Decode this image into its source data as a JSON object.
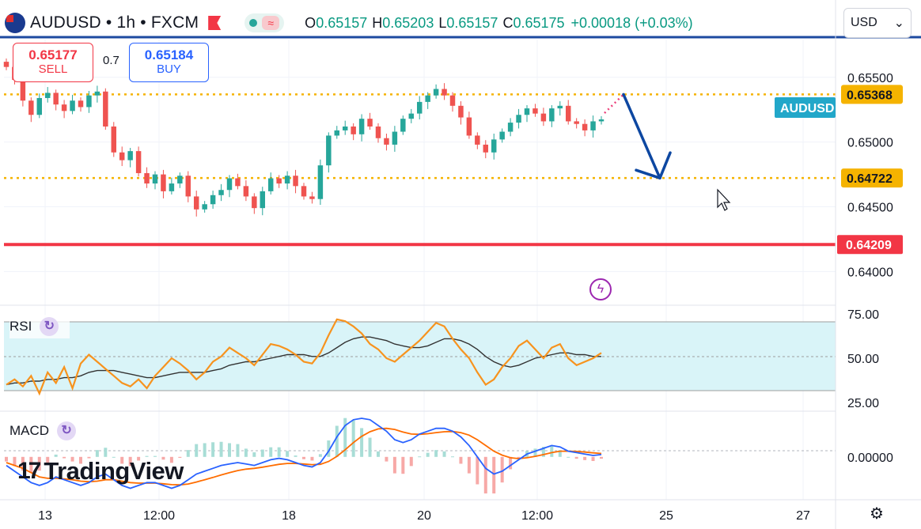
{
  "header": {
    "symbol": "AUDUSD • 1h • FXCM",
    "open_label": "O",
    "open": "0.65157",
    "high_label": "H",
    "high": "0.65203",
    "low_label": "L",
    "low": "0.65157",
    "close_label": "C",
    "close": "0.65175",
    "change": "+0.00018 (+0.03%)"
  },
  "trade": {
    "sell_price": "0.65177",
    "sell_label": "SELL",
    "spread": "0.7",
    "buy_price": "0.65184",
    "buy_label": "BUY"
  },
  "currency_selector": {
    "value": "USD"
  },
  "symbol_tag": "AUDUSD",
  "indicators": {
    "rsi_label": "RSI",
    "macd_label": "MACD"
  },
  "branding": {
    "logo_text": "TradingView"
  },
  "colors": {
    "up": "#26a69a",
    "down": "#ef5350",
    "level": "#f5b300",
    "support": "#f23645",
    "arrow": "#0d47a1",
    "rsi": "#f7931e",
    "rsi_ma": "#333333",
    "macd": "#2962ff",
    "signal": "#ff6d00",
    "symbol_tag": "#22a7c9"
  },
  "chart_data": [
    {
      "type": "candlestick",
      "title": "AUDUSD • 1h • FXCM",
      "y_axis_ticks": [
        "0.65500",
        "0.65000",
        "0.64500",
        "0.64000"
      ],
      "x_axis_ticks": [
        "13",
        "12:00",
        "18",
        "20",
        "12:00",
        "25",
        "27"
      ],
      "ylim": [
        0.6374,
        0.6581
      ],
      "horizontal_levels": [
        {
          "value": 0.65368,
          "label": "0.65368",
          "style": "dotted",
          "color": "#f5b300"
        },
        {
          "value": 0.64722,
          "label": "0.64722",
          "style": "dotted",
          "color": "#f5b300"
        },
        {
          "value": 0.64209,
          "label": "0.64209",
          "style": "solid",
          "color": "#f23645"
        }
      ],
      "close_path": [
        0.6558,
        0.6548,
        0.6532,
        0.6521,
        0.6534,
        0.6538,
        0.6529,
        0.6524,
        0.6532,
        0.6527,
        0.6536,
        0.6539,
        0.6512,
        0.6492,
        0.6486,
        0.6493,
        0.6476,
        0.6468,
        0.6475,
        0.6462,
        0.6468,
        0.6474,
        0.6458,
        0.6448,
        0.6452,
        0.6459,
        0.6463,
        0.6472,
        0.6466,
        0.6458,
        0.6449,
        0.6462,
        0.6472,
        0.6468,
        0.6474,
        0.6466,
        0.6458,
        0.6456,
        0.6482,
        0.6505,
        0.6509,
        0.6512,
        0.6506,
        0.6518,
        0.6512,
        0.6503,
        0.6498,
        0.6508,
        0.6518,
        0.6522,
        0.6531,
        0.6536,
        0.6541,
        0.6536,
        0.6528,
        0.6519,
        0.6505,
        0.6498,
        0.6492,
        0.6502,
        0.6508,
        0.6515,
        0.6521,
        0.6526,
        0.6522,
        0.6516,
        0.6526,
        0.6528,
        0.6516,
        0.6514,
        0.6509,
        0.6516,
        0.65175
      ],
      "arrow": {
        "from": 0.65368,
        "to": 0.64722,
        "color": "#0d47a1"
      }
    },
    {
      "type": "line",
      "title": "RSI",
      "y_axis_ticks": [
        "75.00",
        "50.00",
        "25.00"
      ],
      "ylim": [
        20,
        80
      ],
      "band": [
        30,
        70
      ],
      "series": [
        {
          "values": [
            35,
            38,
            34,
            40,
            30,
            42,
            36,
            45,
            33,
            47,
            52,
            48,
            44,
            40,
            36,
            34,
            38,
            33,
            40,
            45,
            50,
            47,
            43,
            38,
            42,
            48,
            51,
            56,
            53,
            50,
            46,
            52,
            58,
            57,
            55,
            52,
            48,
            47,
            53,
            63,
            72,
            71,
            68,
            64,
            58,
            55,
            50,
            48,
            52,
            56,
            60,
            65,
            70,
            68,
            61,
            55,
            50,
            42,
            35,
            38,
            45,
            50,
            57,
            60,
            55,
            50,
            56,
            58,
            50,
            46,
            48,
            50,
            53
          ]
        },
        {
          "values": [
            35,
            36,
            36,
            37,
            37,
            38,
            38,
            39,
            39,
            40,
            42,
            43,
            43,
            43,
            42,
            41,
            40,
            39,
            39,
            40,
            41,
            42,
            42,
            42,
            42,
            43,
            44,
            46,
            47,
            48,
            48,
            49,
            50,
            51,
            52,
            52,
            52,
            51,
            51,
            53,
            56,
            59,
            61,
            62,
            62,
            61,
            60,
            58,
            57,
            56,
            56,
            57,
            59,
            61,
            61,
            60,
            58,
            55,
            51,
            48,
            46,
            45,
            46,
            48,
            50,
            51,
            52,
            53,
            53,
            52,
            52,
            51,
            51
          ]
        }
      ]
    },
    {
      "type": "line",
      "title": "MACD",
      "y_axis_ticks": [
        "0.00000"
      ],
      "ylim": [
        -1.5,
        1.6
      ],
      "series": [
        {
          "values": [
            -0.3,
            -0.5,
            -0.7,
            -0.9,
            -1.0,
            -0.9,
            -0.7,
            -0.8,
            -0.9,
            -1.0,
            -0.9,
            -0.7,
            -0.6,
            -0.8,
            -1.0,
            -1.1,
            -1.0,
            -0.9,
            -0.9,
            -1.0,
            -1.1,
            -1.0,
            -0.8,
            -0.6,
            -0.5,
            -0.4,
            -0.3,
            -0.25,
            -0.2,
            -0.25,
            -0.3,
            -0.2,
            -0.1,
            -0.05,
            -0.1,
            -0.2,
            -0.3,
            -0.35,
            -0.2,
            0.2,
            0.7,
            1.1,
            1.3,
            1.35,
            1.3,
            1.1,
            0.9,
            0.6,
            0.5,
            0.6,
            0.8,
            0.9,
            1.0,
            1.0,
            0.9,
            0.7,
            0.4,
            0.0,
            -0.4,
            -0.6,
            -0.5,
            -0.3,
            -0.1,
            0.1,
            0.2,
            0.3,
            0.4,
            0.35,
            0.2,
            0.15,
            0.1,
            0.05,
            0.08
          ]
        },
        {
          "values": [
            -0.2,
            -0.3,
            -0.4,
            -0.55,
            -0.7,
            -0.75,
            -0.75,
            -0.77,
            -0.8,
            -0.85,
            -0.87,
            -0.85,
            -0.8,
            -0.8,
            -0.85,
            -0.9,
            -0.92,
            -0.92,
            -0.92,
            -0.94,
            -0.97,
            -0.98,
            -0.95,
            -0.88,
            -0.8,
            -0.72,
            -0.63,
            -0.55,
            -0.48,
            -0.43,
            -0.4,
            -0.36,
            -0.31,
            -0.26,
            -0.23,
            -0.23,
            -0.25,
            -0.27,
            -0.26,
            -0.16,
            0.02,
            0.25,
            0.5,
            0.72,
            0.88,
            0.98,
            1.0,
            0.96,
            0.87,
            0.8,
            0.79,
            0.81,
            0.85,
            0.88,
            0.89,
            0.85,
            0.76,
            0.6,
            0.4,
            0.2,
            0.06,
            -0.03,
            -0.06,
            -0.03,
            0.02,
            0.08,
            0.15,
            0.2,
            0.2,
            0.19,
            0.17,
            0.14,
            0.12
          ]
        }
      ]
    }
  ]
}
